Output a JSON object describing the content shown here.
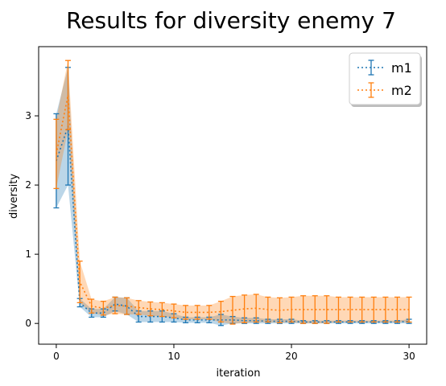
{
  "chart_data": {
    "type": "line",
    "title": "Results for diversity enemy 7",
    "xlabel": "iteration",
    "ylabel": "diversity",
    "xlim": [
      -1.5,
      31.5
    ],
    "ylim": [
      -0.3,
      4.0
    ],
    "xticks": [
      0,
      10,
      20,
      30
    ],
    "yticks": [
      0,
      1,
      2,
      3
    ],
    "legend_position": "top-right",
    "grid": false,
    "x": [
      0,
      1,
      2,
      3,
      4,
      5,
      6,
      7,
      8,
      9,
      10,
      11,
      12,
      13,
      14,
      15,
      16,
      17,
      18,
      19,
      20,
      21,
      22,
      23,
      24,
      25,
      26,
      27,
      28,
      29,
      30
    ],
    "series": [
      {
        "name": "m1",
        "color": "#1f77b4",
        "values": [
          2.35,
          2.85,
          0.3,
          0.15,
          0.15,
          0.28,
          0.25,
          0.1,
          0.1,
          0.1,
          0.08,
          0.05,
          0.05,
          0.05,
          0.05,
          0.05,
          0.04,
          0.04,
          0.03,
          0.03,
          0.03,
          0.02,
          0.02,
          0.02,
          0.02,
          0.02,
          0.02,
          0.02,
          0.02,
          0.02,
          0.03
        ],
        "errors": [
          0.68,
          0.85,
          0.06,
          0.06,
          0.06,
          0.1,
          0.12,
          0.08,
          0.08,
          0.08,
          0.06,
          0.04,
          0.04,
          0.04,
          0.08,
          0.05,
          0.04,
          0.04,
          0.03,
          0.03,
          0.03,
          0.02,
          0.02,
          0.02,
          0.02,
          0.02,
          0.02,
          0.02,
          0.02,
          0.02,
          0.03
        ]
      },
      {
        "name": "m2",
        "color": "#ff7f0e",
        "values": [
          2.45,
          3.3,
          0.6,
          0.25,
          0.22,
          0.26,
          0.25,
          0.23,
          0.21,
          0.2,
          0.18,
          0.16,
          0.16,
          0.16,
          0.17,
          0.19,
          0.21,
          0.22,
          0.2,
          0.19,
          0.2,
          0.2,
          0.2,
          0.2,
          0.2,
          0.2,
          0.2,
          0.2,
          0.2,
          0.2,
          0.2
        ],
        "errors": [
          0.5,
          0.5,
          0.3,
          0.1,
          0.1,
          0.12,
          0.12,
          0.1,
          0.1,
          0.1,
          0.1,
          0.1,
          0.1,
          0.1,
          0.15,
          0.2,
          0.2,
          0.2,
          0.18,
          0.18,
          0.18,
          0.2,
          0.2,
          0.2,
          0.18,
          0.18,
          0.18,
          0.18,
          0.18,
          0.18,
          0.18
        ]
      }
    ]
  }
}
